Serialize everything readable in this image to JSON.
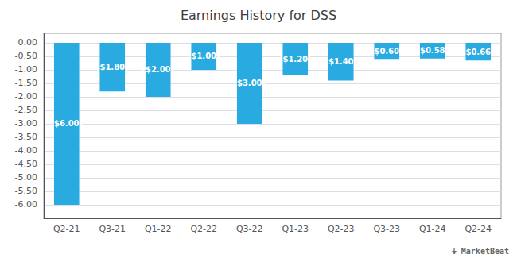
{
  "chart_data": {
    "type": "bar",
    "title": "Earnings History for DSS",
    "categories": [
      "Q2-21",
      "Q3-21",
      "Q1-22",
      "Q2-22",
      "Q3-22",
      "Q1-23",
      "Q2-23",
      "Q3-23",
      "Q1-24",
      "Q2-24"
    ],
    "values": [
      -6.0,
      -1.8,
      -2.0,
      -1.0,
      -3.0,
      -1.2,
      -1.4,
      -0.6,
      -0.58,
      -0.66
    ],
    "value_labels": [
      "($6.00)",
      "($1.80)",
      "($2.00)",
      "($1.00)",
      "($3.00)",
      "($1.20)",
      "($1.40)",
      "($0.60)",
      "($0.58)",
      "($0.66)"
    ],
    "data_labels": true,
    "color": "#29ABE2",
    "ylim": [
      -6.5,
      0.35
    ],
    "yticks": [
      {
        "value": 0,
        "label": "0.00"
      },
      {
        "value": -0.5,
        "label": "-0.50"
      },
      {
        "value": -1,
        "label": "-1.00"
      },
      {
        "value": -1.5,
        "label": "-1.50"
      },
      {
        "value": -2,
        "label": "-2.00"
      },
      {
        "value": -2.5,
        "label": "-2.50"
      },
      {
        "value": -3,
        "label": "-3.00"
      },
      {
        "value": -3.5,
        "label": "-3.50"
      },
      {
        "value": -4,
        "label": "-4.00"
      },
      {
        "value": -4.5,
        "label": "-4.50"
      },
      {
        "value": -5,
        "label": "-5.00"
      },
      {
        "value": -5.5,
        "label": "-5.50"
      },
      {
        "value": -6,
        "label": "-6.00"
      }
    ],
    "grid": true,
    "annotations": [
      "⍖ MarketBeat"
    ]
  }
}
